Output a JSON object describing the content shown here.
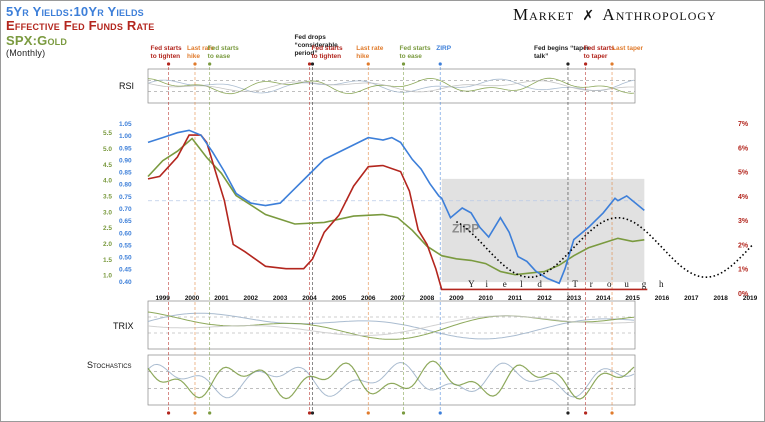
{
  "brand": {
    "left": "Market",
    "right": "Anthropology"
  },
  "legend": [
    {
      "text": "5Yr Yields:10Yr Yields",
      "color": "#3d7fd9"
    },
    {
      "text": "Effective Fed Funds Rate",
      "color": "#b3261e"
    },
    {
      "text": "SPX:Gold",
      "color": "#7a9a3f"
    },
    {
      "text": "(Monthly)",
      "color": "#222222"
    }
  ],
  "panels": {
    "rsi": "RSI",
    "trix": "TRIX",
    "stochastics": "Stochastics"
  },
  "chart_data": {
    "type": "line",
    "title": "5Yr Yields:10Yr Yields / Effective Fed Funds Rate / SPX:Gold (Monthly)",
    "x_range": [
      1999,
      2019.6
    ],
    "x_ticks": [
      "1999",
      "2000",
      "2001",
      "2002",
      "2003",
      "2004",
      "2005",
      "2006",
      "2007",
      "2008",
      "2009",
      "2010",
      "2011",
      "2012",
      "2013",
      "2014",
      "2015",
      "2016",
      "2017",
      "2018",
      "2019"
    ],
    "axes": {
      "ratio_5y10y": {
        "range": [
          0.35,
          1.05
        ],
        "ticks": [
          "1.05",
          "1.00",
          "0.95",
          "0.90",
          "0.85",
          "0.80",
          "0.75",
          "0.70",
          "0.65",
          "0.60",
          "0.55",
          "0.50",
          "0.45",
          "0.40"
        ],
        "color": "#3d7fd9"
      },
      "spx_gold": {
        "ticks": [
          "5.5",
          "5.0",
          "4.5",
          "4.0",
          "3.5",
          "3.0",
          "2.5",
          "2.0",
          "1.5",
          "1.0"
        ],
        "color": "#7a9a3f"
      },
      "fed_funds": {
        "range": [
          0,
          7
        ],
        "ticks": [
          "7%",
          "6%",
          "5%",
          "4%",
          "3%",
          "2%",
          "1%",
          "0%"
        ],
        "color": "#b3261e"
      }
    },
    "series": [
      {
        "name": "5Yr Yields:10Yr Yields",
        "color": "#3d7fd9",
        "axis": "ratio_5y10y",
        "x": [
          1999,
          1999.5,
          2000,
          2000.4,
          2000.8,
          2001.2,
          2001.6,
          2002,
          2002.5,
          2003,
          2003.5,
          2004,
          2004.5,
          2005,
          2005.5,
          2006,
          2006.5,
          2007,
          2007.3,
          2007.6,
          2008,
          2008.3,
          2008.6,
          2008.9,
          2009,
          2009.3,
          2009.7,
          2010,
          2010.3,
          2010.6,
          2011,
          2011.3,
          2011.6,
          2011.9,
          2012.2,
          2012.6,
          2013,
          2013.2,
          2013.5,
          2014,
          2014.5,
          2014.9,
          2015,
          2015.3,
          2015.6,
          2015.9
        ],
        "values": [
          0.97,
          0.99,
          1.01,
          1.02,
          1.0,
          0.93,
          0.85,
          0.76,
          0.72,
          0.71,
          0.72,
          0.78,
          0.84,
          0.9,
          0.93,
          0.96,
          0.99,
          0.98,
          0.99,
          0.97,
          0.9,
          0.86,
          0.8,
          0.75,
          0.74,
          0.66,
          0.7,
          0.68,
          0.62,
          0.58,
          0.66,
          0.6,
          0.5,
          0.48,
          0.44,
          0.41,
          0.39,
          0.45,
          0.57,
          0.62,
          0.68,
          0.74,
          0.73,
          0.75,
          0.72,
          0.69
        ]
      },
      {
        "name": "SPX:Gold",
        "color": "#7a9a3f",
        "axis": "spx_gold",
        "x": [
          1999,
          1999.5,
          2000,
          2000.5,
          2001,
          2001.5,
          2002,
          2002.5,
          2003,
          2003.5,
          2004,
          2005,
          2006,
          2007,
          2007.5,
          2008,
          2008.5,
          2009,
          2009.5,
          2010,
          2010.5,
          2011,
          2011.5,
          2012,
          2012.5,
          2013,
          2013.5,
          2014,
          2014.5,
          2015,
          2015.5,
          2015.9
        ],
        "values": [
          4.1,
          4.6,
          4.9,
          5.3,
          4.7,
          4.2,
          3.5,
          3.2,
          2.9,
          2.75,
          2.6,
          2.65,
          2.85,
          2.9,
          2.8,
          2.4,
          1.9,
          1.6,
          1.5,
          1.45,
          1.35,
          1.1,
          1.0,
          1.05,
          1.1,
          1.3,
          1.6,
          1.85,
          2.0,
          2.15,
          2.05,
          2.1
        ]
      },
      {
        "name": "Effective Fed Funds Rate",
        "color": "#b3261e",
        "axis": "fed_funds",
        "x": [
          1999,
          1999.4,
          1999.7,
          2000,
          2000.4,
          2000.8,
          2001,
          2001.3,
          2001.6,
          2001.9,
          2002.3,
          2003,
          2003.7,
          2004.3,
          2004.6,
          2005,
          2005.5,
          2006,
          2006.5,
          2007,
          2007.6,
          2007.9,
          2008.2,
          2008.5,
          2008.8,
          2009,
          2016
        ],
        "values": [
          4.7,
          4.8,
          5.2,
          5.6,
          6.5,
          6.5,
          6.2,
          5.0,
          3.8,
          2.0,
          1.7,
          1.1,
          1.0,
          1.0,
          1.4,
          2.5,
          3.2,
          4.4,
          5.2,
          5.25,
          5.0,
          4.2,
          2.6,
          2.0,
          1.0,
          0.15,
          0.15
        ]
      },
      {
        "name": "Yield Trough projection",
        "style": "dotted",
        "color": "#000000",
        "x": [
          2009.5,
          2012,
          2015,
          2018,
          2019.6
        ],
        "values": [
          0.66,
          0.415,
          0.66,
          0.415,
          0.56
        ]
      }
    ],
    "annotations": {
      "events": [
        {
          "label": "Fed starts to tighten",
          "x": 1999.7,
          "color": "#b3261e"
        },
        {
          "label": "Last rate hike",
          "x": 2000.6,
          "color": "#e07b2c"
        },
        {
          "label": "Fed starts to ease",
          "x": 2001.1,
          "color": "#7a9a3f"
        },
        {
          "label": "Fed drops “considerable period”",
          "x": 2004.6,
          "color": "#222222"
        },
        {
          "label": "Fed starts to tighten",
          "x": 2004.5,
          "color": "#b3261e"
        },
        {
          "label": "Last rate hike",
          "x": 2006.5,
          "color": "#e07b2c"
        },
        {
          "label": "Fed starts to ease",
          "x": 2007.7,
          "color": "#7a9a3f"
        },
        {
          "label": "ZIRP",
          "x": 2008.95,
          "color": "#3d7fd9"
        },
        {
          "label": "Fed begins “taper-talk”",
          "x": 2013.3,
          "color": "#222222"
        },
        {
          "label": "Fed starts to taper",
          "x": 2013.9,
          "color": "#b3261e"
        },
        {
          "label": "Last taper",
          "x": 2014.8,
          "color": "#e07b2c"
        }
      ],
      "zirp_box_label": "ZIRP",
      "trough_label": [
        "Y",
        "i",
        "e",
        "l",
        "d",
        "T",
        "r",
        "o",
        "u",
        "g",
        "h"
      ],
      "zirp_period": [
        2009,
        2015.9
      ]
    }
  }
}
